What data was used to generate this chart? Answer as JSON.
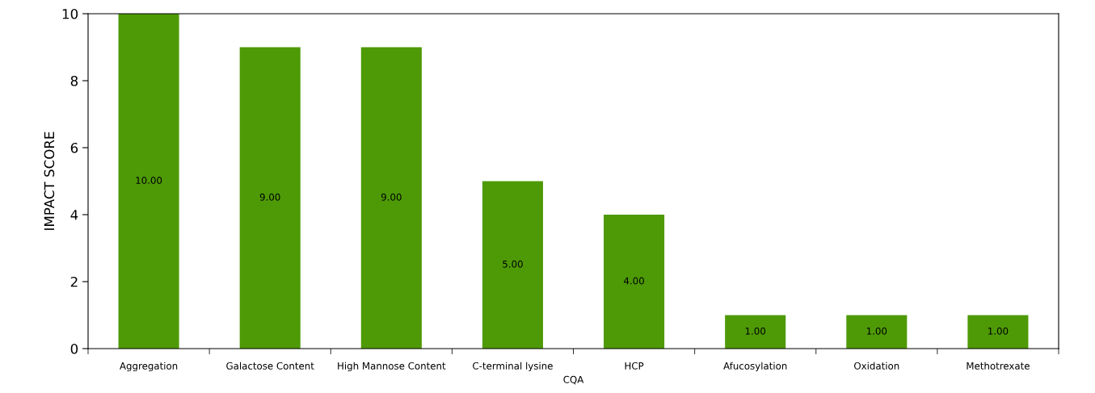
{
  "chart_data": {
    "type": "bar",
    "xlabel": "CQA",
    "ylabel": "IMPACT SCORE",
    "categories": [
      "Aggregation",
      "Galactose Content",
      "High Mannose Content",
      "C-terminal lysine",
      "HCP",
      "Afucosylation",
      "Oxidation",
      "Methotrexate"
    ],
    "values": [
      10,
      9,
      9,
      5,
      4,
      1,
      1,
      1
    ],
    "value_labels": [
      "10.00",
      "9.00",
      "9.00",
      "5.00",
      "4.00",
      "1.00",
      "1.00",
      "1.00"
    ],
    "color": "#4e9a06",
    "ylim": [
      0,
      10
    ],
    "yticks": [
      0,
      2,
      4,
      6,
      8,
      10
    ],
    "grid": false,
    "legend": false
  }
}
